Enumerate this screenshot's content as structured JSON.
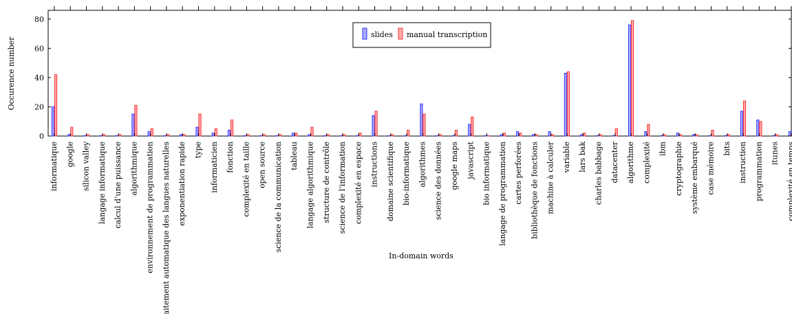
{
  "chart_data": {
    "type": "bar",
    "xlabel": "In-domain words",
    "ylabel": "Occurence number",
    "ylim": [
      0,
      86
    ],
    "yticks": [
      0,
      20,
      40,
      60,
      80
    ],
    "legend_placement": "top-center",
    "grid": false,
    "categories": [
      "informatique",
      "google",
      "silicon valley",
      "langage informatique",
      "calcul d’une puissance",
      "algorithmique",
      "environnement de programmation",
      "traitement automatique des langues naturelles",
      "exponentiation rapide",
      "type",
      "informaticien",
      "fonction",
      "complexité en taille",
      "open source",
      "science de la communication",
      "tableau",
      "langage algorithmique",
      "structure de contrôle",
      "science de l’information",
      "complexité en espace",
      "instructions",
      "domaine scientifique",
      "bio-informatique",
      "algorithmes",
      "science des données",
      "google maps",
      "javascript",
      "bio informatique",
      "langage de programmation",
      "cartes perforées",
      "bibliothèque de fonctions",
      "machine à calculer",
      "variable",
      "lars bak",
      "charles babbage",
      "datacenter",
      "algorithme",
      "complexité",
      "ibm",
      "cryptographie",
      "système embarqué",
      "case mémoire",
      "bits",
      "instruction",
      "programmation",
      "itunes",
      "complexité en temps"
    ],
    "series": [
      {
        "name": "slides",
        "color": "#3333ff",
        "fill": "#aaaaff",
        "values": [
          20,
          1,
          0,
          0,
          0,
          15,
          3,
          0,
          1,
          6,
          2,
          4,
          0,
          0,
          0,
          2,
          1,
          0,
          0,
          0,
          14,
          0,
          0,
          22,
          0,
          0,
          8,
          0,
          1,
          3,
          1,
          3,
          43,
          1,
          0,
          0,
          76,
          3,
          0,
          2,
          1,
          0,
          0,
          17,
          11,
          0,
          3
        ]
      },
      {
        "name": "manual transcription",
        "color": "#ff3333",
        "fill": "#ffaaaa",
        "values": [
          42,
          6,
          1,
          1,
          1,
          21,
          5,
          1,
          1,
          15,
          5,
          11,
          1,
          1,
          1,
          2,
          6,
          1,
          1,
          2,
          17,
          1,
          4,
          15,
          1,
          4,
          13,
          0,
          2,
          2,
          1,
          1,
          44,
          2,
          1,
          5,
          79,
          8,
          1,
          1,
          1,
          4,
          1,
          24,
          10,
          1,
          1
        ]
      }
    ]
  }
}
